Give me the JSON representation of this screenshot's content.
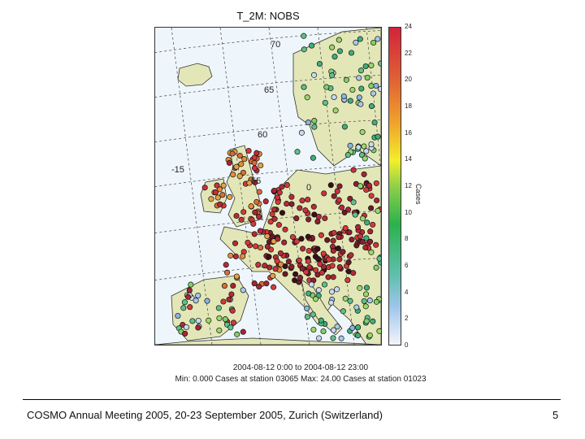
{
  "map": {
    "title": "T_2M: NOBS",
    "latitude_labels": [
      "70",
      "65",
      "60",
      "55"
    ],
    "longitude_labels": [
      "-15",
      "0"
    ],
    "colorbar": {
      "label": "Cases",
      "ticks": [
        "24",
        "22",
        "20",
        "18",
        "16",
        "14",
        "12",
        "10",
        "8",
        "6",
        "4",
        "2",
        "0"
      ]
    },
    "caption_line1": "2004-08-12  0:00 to 2004-08-12 23:00",
    "caption_line2": "Min: 0.000 Cases at station 03065 Max: 24.00 Cases at station 01023"
  },
  "footer": {
    "text": "COSMO Annual Meeting 2005, 20-23 September 2005, Zurich (Switzerland)",
    "page_number": "5"
  }
}
